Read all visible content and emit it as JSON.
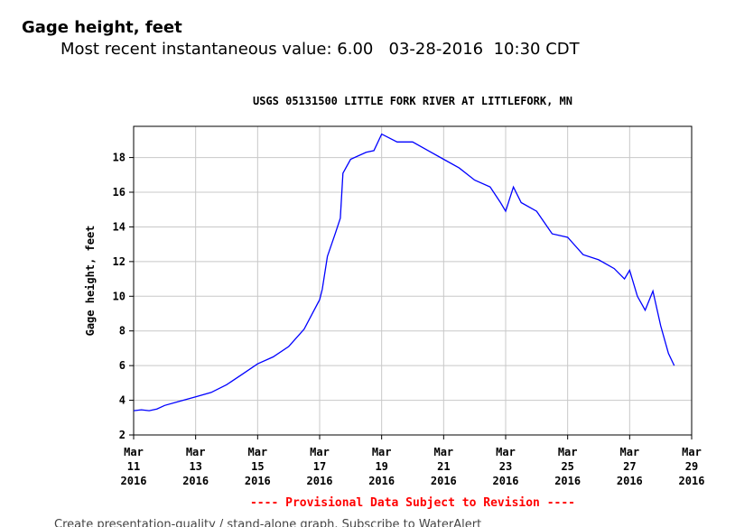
{
  "header": {
    "title": "Gage height, feet",
    "recent_label": "Most recent instantaneous value:",
    "recent_value": "6.00",
    "recent_date": "03-28-2016",
    "recent_time": "10:30 CDT"
  },
  "chart_data": {
    "type": "line",
    "title": "USGS 05131500 LITTLE FORK RIVER AT LITTLEFORK, MN",
    "ylabel": "Gage height, feet",
    "xlabel": "",
    "ylim": [
      2,
      19.8
    ],
    "yticks": [
      2,
      4,
      6,
      8,
      10,
      12,
      14,
      16,
      18
    ],
    "xlim": [
      "2016-03-11",
      "2016-03-29"
    ],
    "xticks": [
      {
        "date": "2016-03-11",
        "mon": "Mar",
        "day": "11",
        "year": "2016"
      },
      {
        "date": "2016-03-13",
        "mon": "Mar",
        "day": "13",
        "year": "2016"
      },
      {
        "date": "2016-03-15",
        "mon": "Mar",
        "day": "15",
        "year": "2016"
      },
      {
        "date": "2016-03-17",
        "mon": "Mar",
        "day": "17",
        "year": "2016"
      },
      {
        "date": "2016-03-19",
        "mon": "Mar",
        "day": "19",
        "year": "2016"
      },
      {
        "date": "2016-03-21",
        "mon": "Mar",
        "day": "21",
        "year": "2016"
      },
      {
        "date": "2016-03-23",
        "mon": "Mar",
        "day": "23",
        "year": "2016"
      },
      {
        "date": "2016-03-25",
        "mon": "Mar",
        "day": "25",
        "year": "2016"
      },
      {
        "date": "2016-03-27",
        "mon": "Mar",
        "day": "27",
        "year": "2016"
      },
      {
        "date": "2016-03-29",
        "mon": "Mar",
        "day": "29",
        "year": "2016"
      }
    ],
    "grid": true,
    "line_color": "#0000ff",
    "note": "---- Provisional Data Subject to Revision ----",
    "note_color": "#ff0000",
    "series": [
      {
        "x": [
          "2016-03-11 00:00",
          "2016-03-11 06:00",
          "2016-03-11 12:00",
          "2016-03-11 18:00",
          "2016-03-12 00:00",
          "2016-03-12 12:00",
          "2016-03-13 00:00",
          "2016-03-13 12:00",
          "2016-03-14 00:00",
          "2016-03-14 12:00",
          "2016-03-15 00:00",
          "2016-03-15 12:00",
          "2016-03-16 00:00",
          "2016-03-16 12:00",
          "2016-03-17 00:00",
          "2016-03-17 02:00",
          "2016-03-17 06:00",
          "2016-03-17 12:00",
          "2016-03-17 16:00",
          "2016-03-17 18:00",
          "2016-03-18 00:00",
          "2016-03-18 12:00",
          "2016-03-18 18:00",
          "2016-03-19 00:00",
          "2016-03-19 12:00",
          "2016-03-20 00:00",
          "2016-03-20 12:00",
          "2016-03-21 00:00",
          "2016-03-21 12:00",
          "2016-03-22 00:00",
          "2016-03-22 12:00",
          "2016-03-22 20:00",
          "2016-03-23 00:00",
          "2016-03-23 06:00",
          "2016-03-23 12:00",
          "2016-03-24 00:00",
          "2016-03-24 12:00",
          "2016-03-25 00:00",
          "2016-03-25 12:00",
          "2016-03-26 00:00",
          "2016-03-26 12:00",
          "2016-03-26 20:00",
          "2016-03-27 00:00",
          "2016-03-27 06:00",
          "2016-03-27 12:00",
          "2016-03-27 18:00",
          "2016-03-28 00:00",
          "2016-03-28 06:00",
          "2016-03-28 10:30"
        ],
        "values": [
          3.4,
          3.45,
          3.4,
          3.5,
          3.7,
          3.95,
          4.2,
          4.45,
          4.9,
          5.5,
          6.1,
          6.5,
          7.1,
          8.1,
          9.8,
          10.4,
          12.3,
          13.6,
          14.5,
          17.1,
          17.9,
          18.3,
          18.4,
          19.35,
          18.9,
          18.9,
          18.4,
          17.9,
          17.4,
          16.7,
          16.3,
          15.4,
          14.9,
          16.3,
          15.4,
          14.9,
          13.6,
          13.4,
          12.4,
          12.1,
          11.6,
          11.0,
          11.5,
          10.0,
          9.2,
          10.3,
          8.3,
          6.7,
          6.0
        ]
      }
    ]
  },
  "footer": {
    "fragment": "Create presentation-quality / stand-alone graph.  Subscribe to  WaterAlert"
  }
}
